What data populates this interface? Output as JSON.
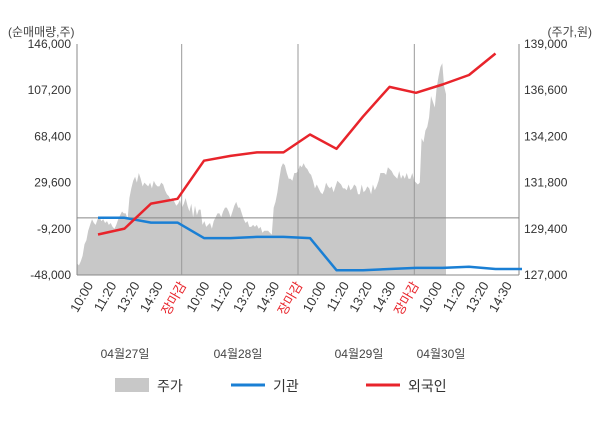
{
  "chart_data": {
    "type": "line",
    "units": {
      "left": "(순매매량,주)",
      "right": "(주가,원)"
    },
    "y_left": {
      "ticks": [
        "146,000",
        "107,200",
        "68,400",
        "29,600",
        "-9,200",
        "-48,000"
      ],
      "range": [
        -48000,
        146000
      ]
    },
    "y_right": {
      "ticks": [
        "139,000",
        "136,600",
        "134,200",
        "131,800",
        "129,400",
        "127,000"
      ],
      "range": [
        127000,
        139000
      ]
    },
    "x_tick_labels": [
      "10:00",
      "11:20",
      "13:20",
      "14:30",
      "장마감",
      "10:00",
      "11:20",
      "13:20",
      "14:30",
      "장마감",
      "10:00",
      "11:20",
      "13:20",
      "14:30",
      "장마감",
      "10:00",
      "11:20",
      "13:20",
      "14:30"
    ],
    "x_tick_close": [
      false,
      false,
      false,
      false,
      true,
      false,
      false,
      false,
      false,
      true,
      false,
      false,
      false,
      false,
      true,
      false,
      false,
      false,
      false
    ],
    "dates": [
      "04월27일",
      "04월28일",
      "04월29일",
      "04월30일"
    ],
    "legend": [
      {
        "name": "주가",
        "color": "#c8c8c8",
        "shape": "area"
      },
      {
        "name": "기관",
        "color": "#1a7fd4",
        "shape": "line"
      },
      {
        "name": "외국인",
        "color": "#e8242b",
        "shape": "line"
      }
    ],
    "price_area": {
      "axis": "right",
      "values": [
        127600,
        127500,
        127700,
        128000,
        128600,
        128800,
        129300,
        129600,
        129900,
        129700,
        129600,
        129900,
        130000,
        129800,
        129900,
        129700,
        129800,
        129600,
        129700,
        129500,
        129400,
        129600,
        129900,
        130100,
        130300,
        130200,
        130200,
        129900,
        131000,
        131500,
        131900,
        132100,
        131800,
        132300,
        132000,
        131600,
        131800,
        131700,
        131600,
        131800,
        131500,
        131900,
        131700,
        131600,
        131600,
        131800,
        131700,
        131400,
        131200,
        131100,
        130900,
        131000,
        130800,
        130600,
        130700,
        130900,
        130500,
        130700,
        131000,
        130600,
        130300,
        130700,
        130000,
        130600,
        130100,
        130400,
        130400,
        129600,
        129800,
        129500,
        129600,
        129700,
        129400,
        129800,
        130000,
        130200,
        130200,
        130000,
        130300,
        130500,
        130500,
        130300,
        130000,
        130300,
        130600,
        130800,
        130500,
        130500,
        130200,
        129900,
        129700,
        129800,
        129500,
        129500,
        129600,
        129500,
        129600,
        129400,
        129500,
        129200,
        129300,
        129300,
        129300,
        129200,
        129100,
        130500,
        130800,
        131300,
        132000,
        132600,
        132800,
        132700,
        132300,
        132000,
        132000,
        131900,
        132300,
        132300,
        132400,
        132700,
        132600,
        132800,
        132600,
        132500,
        132300,
        132200,
        131900,
        131500,
        131700,
        131500,
        131300,
        131200,
        131400,
        131800,
        131600,
        131500,
        131600,
        131300,
        131600,
        131900,
        131800,
        131700,
        131500,
        131500,
        131400,
        131700,
        131400,
        131500,
        131700,
        131600,
        131200,
        131200,
        131700,
        131300,
        131400,
        131600,
        131500,
        131200,
        131700,
        131400,
        131600,
        131900,
        132300,
        132300,
        132300,
        132200,
        132600,
        132500,
        132400,
        132200,
        132100,
        132000,
        132400,
        132000,
        132200,
        132000,
        132300,
        132000,
        132000,
        132300,
        131900,
        131800,
        131700,
        131800,
        134100,
        133900,
        134500,
        134700,
        135200,
        136300,
        136000,
        135700,
        136700,
        137300,
        137800,
        138000,
        136800,
        136400
      ]
    },
    "institution": {
      "name": "기관",
      "axis": "left",
      "points": [
        [
          1,
          0
        ],
        [
          2,
          0
        ],
        [
          3,
          -4000
        ],
        [
          4,
          -4000
        ],
        [
          5,
          -17000
        ],
        [
          6,
          -17000
        ],
        [
          7,
          -16000
        ],
        [
          8,
          -16000
        ],
        [
          9,
          -17000
        ],
        [
          10,
          -44000
        ],
        [
          11,
          -44000
        ],
        [
          12,
          -43000
        ],
        [
          13,
          -42000
        ],
        [
          14,
          -42000
        ],
        [
          15,
          -41000
        ],
        [
          16,
          -43000
        ],
        [
          17,
          -43000
        ]
      ]
    },
    "foreign": {
      "name": "외국인",
      "axis": "left",
      "points": [
        [
          1,
          -14000
        ],
        [
          2,
          -9000
        ],
        [
          3,
          12000
        ],
        [
          4,
          16000
        ],
        [
          5,
          48000
        ],
        [
          6,
          52000
        ],
        [
          7,
          55000
        ],
        [
          8,
          55000
        ],
        [
          9,
          70000
        ],
        [
          10,
          58000
        ],
        [
          11,
          85000
        ],
        [
          12,
          110000
        ],
        [
          13,
          105000
        ],
        [
          14,
          112000
        ],
        [
          15,
          120000
        ],
        [
          16,
          138000
        ]
      ]
    },
    "grid": false,
    "legend_position": "bottom"
  }
}
